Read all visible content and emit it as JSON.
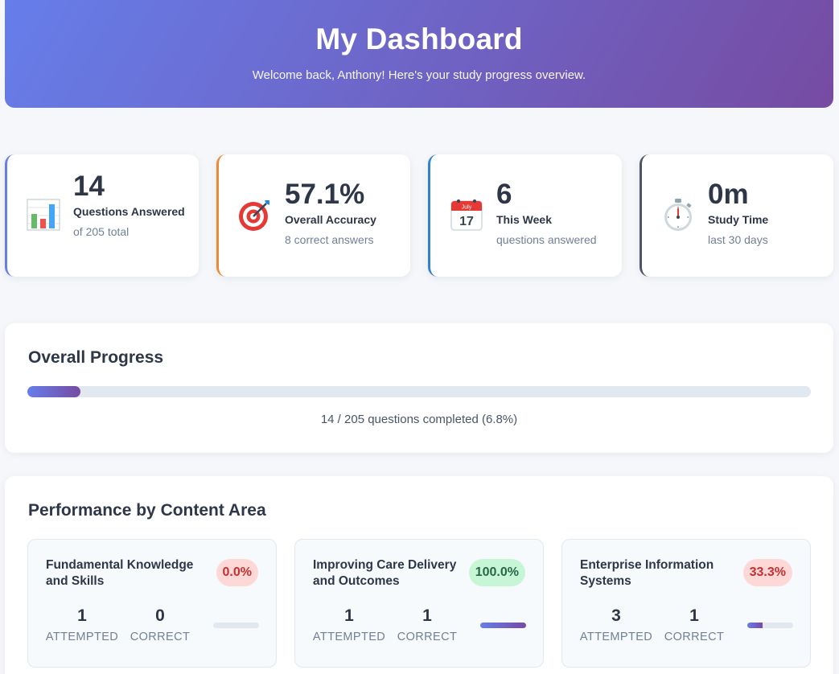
{
  "header": {
    "title": "My Dashboard",
    "subtitle": "Welcome back, Anthony! Here's your study progress overview."
  },
  "stats": [
    {
      "icon": "bar-chart-icon",
      "value": "14",
      "label": "Questions Answered",
      "sub": "of 205 total",
      "accent": "#667eea"
    },
    {
      "icon": "target-icon",
      "value": "57.1%",
      "label": "Overall Accuracy",
      "sub": "8 correct answers",
      "accent": "#ed8936"
    },
    {
      "icon": "calendar-icon",
      "value": "6",
      "label": "This Week",
      "sub": "questions answered",
      "accent": "#3182ce"
    },
    {
      "icon": "stopwatch-icon",
      "value": "0m",
      "label": "Study Time",
      "sub": "last 30 days",
      "accent": "#4a5568"
    }
  ],
  "calendar_icon": {
    "month": "July",
    "day": "17"
  },
  "progress": {
    "title": "Overall Progress",
    "completed": 14,
    "total": 205,
    "percent": 6.8,
    "text": "14 / 205 questions completed (6.8%)"
  },
  "performance": {
    "title": "Performance by Content Area",
    "attempted_label": "ATTEMPTED",
    "correct_label": "CORRECT",
    "areas": [
      {
        "name": "Fundamental Knowledge and Skills",
        "accuracy": "0.0%",
        "accuracy_value": 0.0,
        "attempted": "1",
        "correct": "0",
        "level": "low"
      },
      {
        "name": "Improving Care Delivery and Outcomes",
        "accuracy": "100.0%",
        "accuracy_value": 100.0,
        "attempted": "1",
        "correct": "1",
        "level": "high"
      },
      {
        "name": "Enterprise Information Systems",
        "accuracy": "33.3%",
        "accuracy_value": 33.3,
        "attempted": "3",
        "correct": "1",
        "level": "low"
      }
    ]
  },
  "colors": {
    "gradient_start": "#667eea",
    "gradient_end": "#764ba2",
    "badge_low_bg": "#fed7d7",
    "badge_high_bg": "#c6f6d5"
  }
}
